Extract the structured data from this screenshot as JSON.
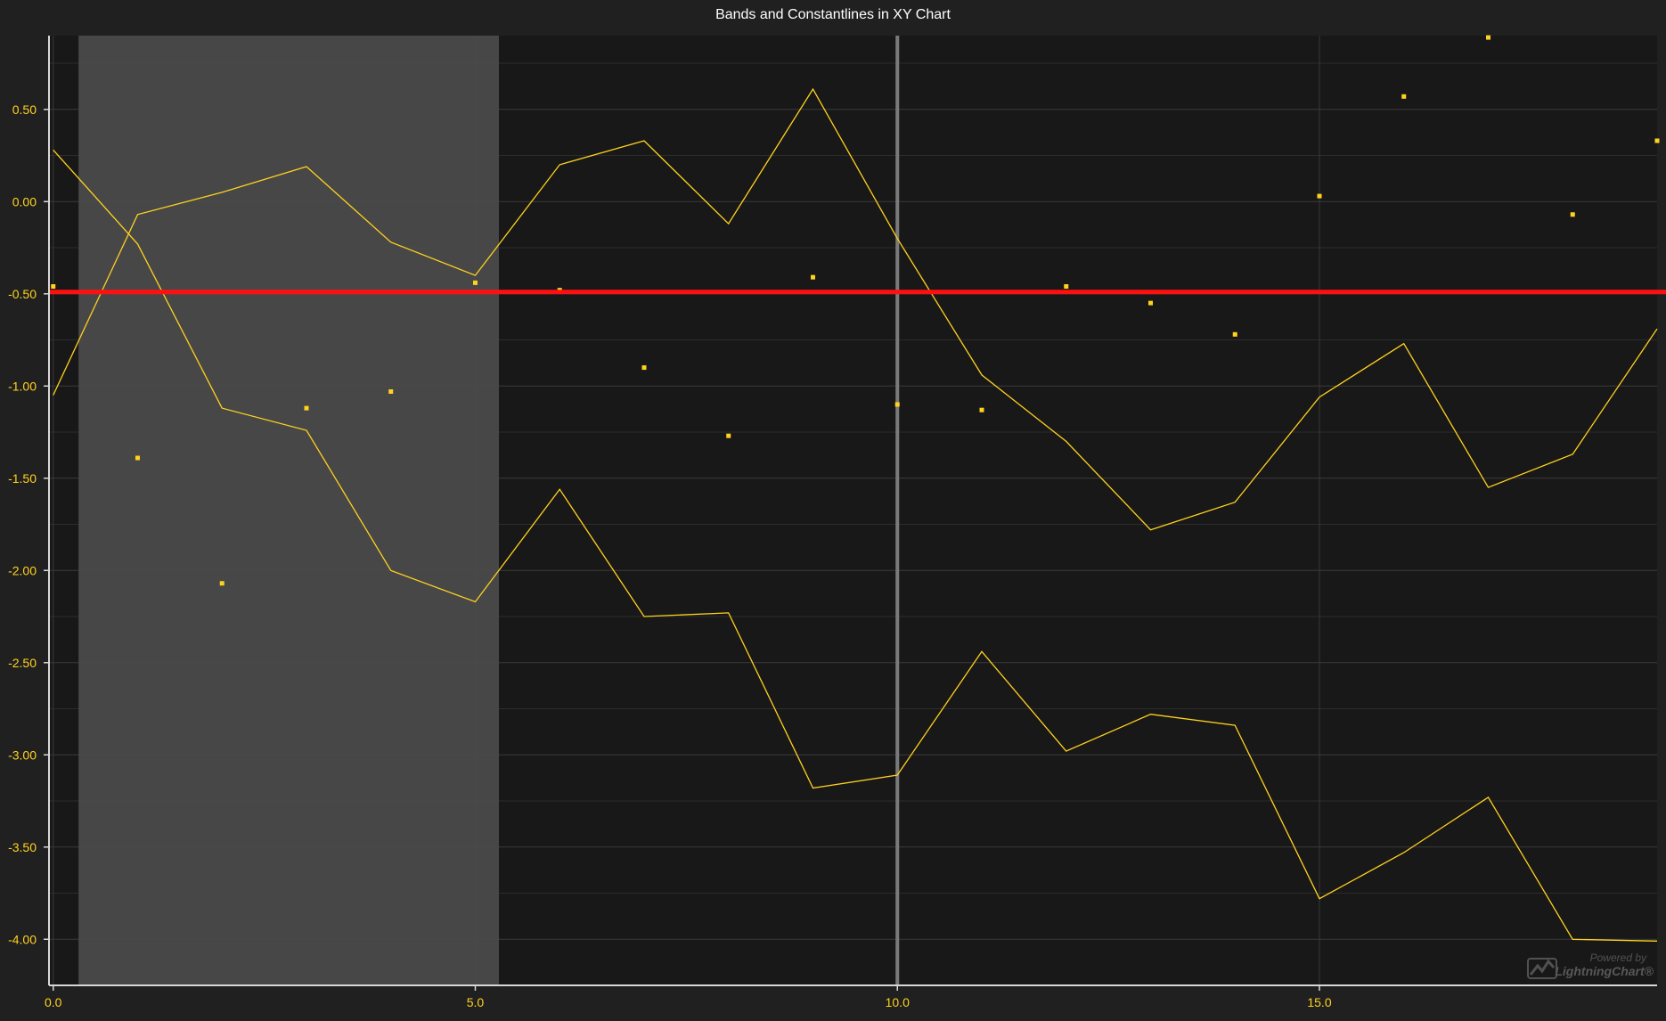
{
  "chart_data": {
    "type": "line",
    "title": "Bands and Constantlines in XY Chart",
    "xlim": [
      -0.05,
      19.0
    ],
    "ylim": [
      -4.25,
      0.9
    ],
    "x_ticks": [
      0,
      5,
      10,
      15
    ],
    "x_tick_labels": [
      "0.0",
      "5.0",
      "10.0",
      "15.0"
    ],
    "y_ticks": [
      0.5,
      0,
      -0.5,
      -1,
      -1.5,
      -2,
      -2.5,
      -3,
      -3.5,
      -4
    ],
    "y_tick_labels": [
      "0.50",
      "0.00",
      "-0.50",
      "-1.00",
      "-1.50",
      "-2.00",
      "-2.50",
      "-3.00",
      "-3.50",
      "-4.00"
    ],
    "grid": true,
    "band": {
      "x_start": 0.3,
      "x_end": 5.28,
      "color": "#4a4a4a"
    },
    "constant_line": {
      "y": -0.49,
      "color": "#ff1010"
    },
    "vertical_line": {
      "x": 10.0,
      "color": "#7a7a7a"
    },
    "series": [
      {
        "type": "line",
        "color": "#ffd21e",
        "x": [
          0,
          1,
          2,
          3,
          4,
          5,
          6,
          7,
          8,
          9,
          10,
          11,
          12,
          13,
          14,
          15,
          16,
          17,
          18,
          19
        ],
        "y": [
          0.28,
          -0.23,
          -1.12,
          -1.24,
          -2.0,
          -2.17,
          -1.56,
          -2.25,
          -2.23,
          -3.18,
          -3.11,
          -2.44,
          -2.98,
          -2.78,
          -2.84,
          -3.78,
          -3.53,
          -3.23,
          -4.0,
          -4.01
        ]
      },
      {
        "type": "line",
        "color": "#ffd21e",
        "x": [
          0,
          1,
          2,
          3,
          4,
          5,
          6,
          7,
          8,
          9,
          10,
          11,
          12,
          13,
          14,
          15,
          16,
          17,
          18,
          19
        ],
        "y": [
          -1.05,
          -0.07,
          0.05,
          0.19,
          -0.22,
          -0.4,
          0.2,
          0.33,
          -0.12,
          0.61,
          -0.2,
          -0.94,
          -1.3,
          -1.78,
          -1.63,
          -1.06,
          -0.77,
          -1.55,
          -1.37,
          -0.69
        ]
      },
      {
        "type": "scatter",
        "color": "#ffd21e",
        "x": [
          0,
          1,
          2,
          3,
          4,
          5,
          6,
          7,
          8,
          9,
          10,
          11,
          12,
          13,
          14,
          15,
          16,
          17,
          18,
          19
        ],
        "y": [
          -0.46,
          -1.39,
          -2.07,
          -1.12,
          -1.03,
          -0.44,
          -0.48,
          -0.9,
          -1.27,
          -0.41,
          -1.1,
          -1.13,
          -0.46,
          -0.55,
          -0.72,
          0.03,
          0.57,
          0.89,
          -0.07,
          0.33
        ]
      }
    ]
  },
  "watermark": {
    "line1": "Powered by",
    "line2": "LightningChart®",
    "icon": "lightningchart-logo-icon"
  },
  "colors": {
    "background": "#202020",
    "plot_background": "#181818",
    "gridline": "#3a3a3a",
    "axis": "#d8d8d8",
    "tick_label": "#ffd21e",
    "series": "#ffd21e",
    "constant_line": "#ff1010"
  }
}
